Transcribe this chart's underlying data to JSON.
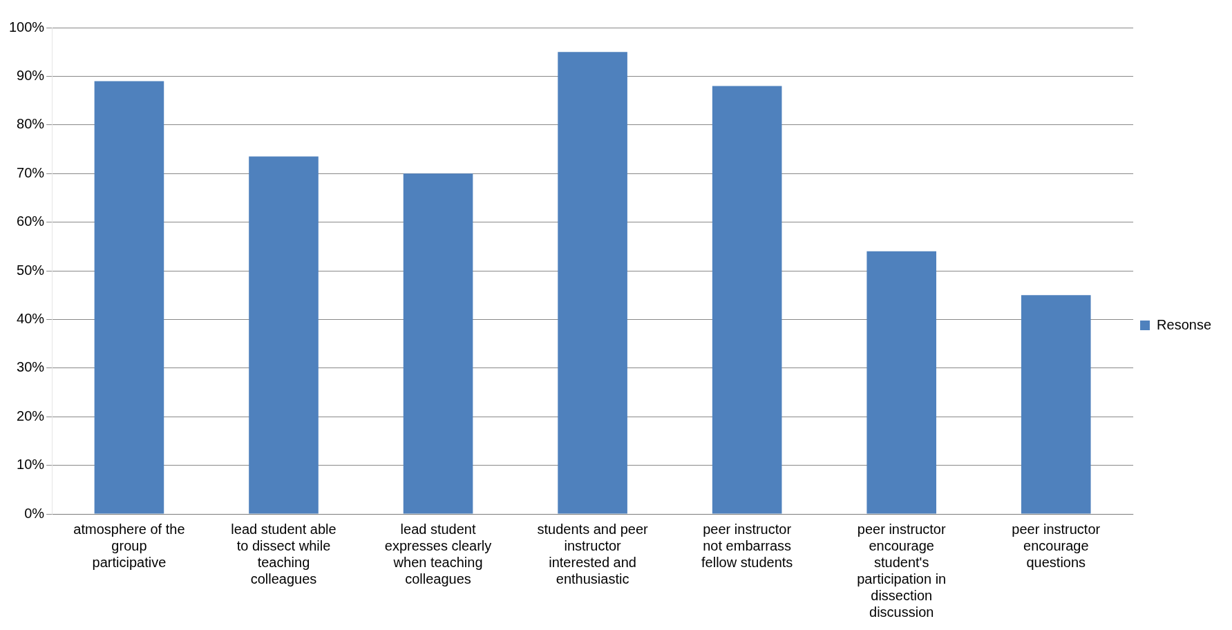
{
  "chart_data": {
    "type": "bar",
    "categories": [
      "atmosphere of the group participative",
      "lead student able to dissect while teaching colleagues",
      "lead student expresses clearly when teaching colleagues",
      "students and peer instructor interested and enthusiastic",
      "peer instructor not embarrass fellow students",
      "peer instructor encourage student's participation in dissection discussion",
      "peer instructor encourage questions"
    ],
    "series": [
      {
        "name": "Resonse",
        "color": "#4f81bd",
        "values": [
          89,
          73.5,
          70,
          95,
          88,
          54,
          45
        ]
      }
    ],
    "ylim": [
      0,
      100
    ],
    "yticks": [
      {
        "value": 0,
        "label": "0%"
      },
      {
        "value": 10,
        "label": "10%"
      },
      {
        "value": 20,
        "label": "20%"
      },
      {
        "value": 30,
        "label": "30%"
      },
      {
        "value": 40,
        "label": "40%"
      },
      {
        "value": 50,
        "label": "50%"
      },
      {
        "value": 60,
        "label": "60%"
      },
      {
        "value": 70,
        "label": "70%"
      },
      {
        "value": 80,
        "label": "80%"
      },
      {
        "value": 90,
        "label": "90%"
      },
      {
        "value": 100,
        "label": "100%"
      }
    ],
    "grid": "y",
    "legend": "right"
  }
}
